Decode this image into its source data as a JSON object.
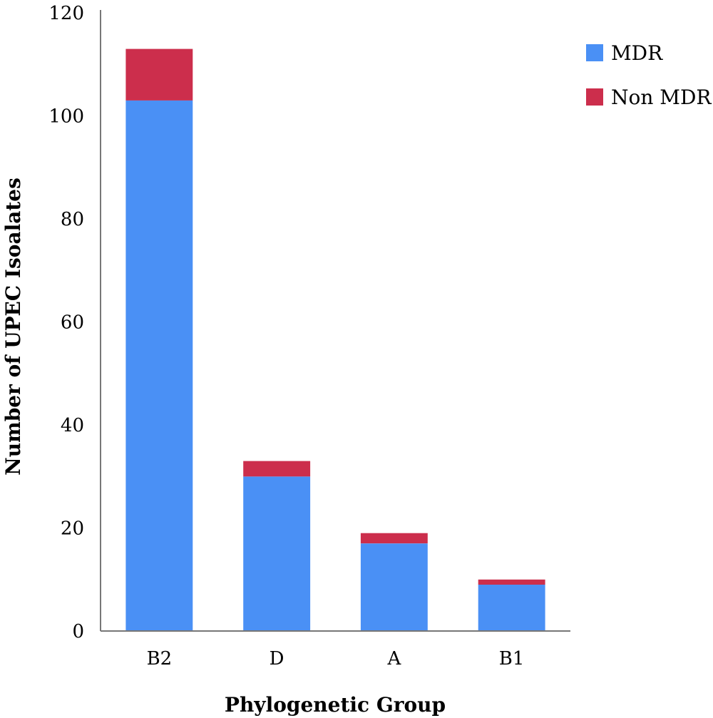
{
  "chart_data": {
    "type": "bar",
    "stacked": true,
    "title": "",
    "xlabel": "Phylogenetic Group",
    "ylabel": "Number of UPEC Isoalates",
    "categories": [
      "B2",
      "D",
      "A",
      "B1"
    ],
    "ylim": [
      0,
      120
    ],
    "yticks": [
      0,
      20,
      40,
      60,
      80,
      100,
      120
    ],
    "grid": false,
    "legend_position": "top-right",
    "series": [
      {
        "name": "MDR",
        "color": "#4a90f5",
        "values": [
          103,
          30,
          17,
          9
        ]
      },
      {
        "name": "Non MDR",
        "color": "#cc2e4c",
        "values": [
          10,
          3,
          2,
          1
        ]
      }
    ]
  }
}
